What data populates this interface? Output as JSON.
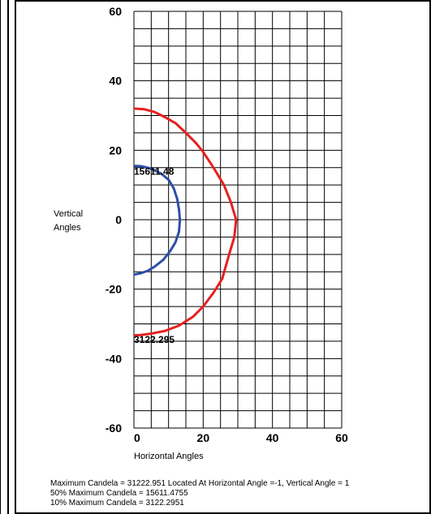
{
  "chart_data": {
    "type": "line",
    "xlabel": "Horizontal Angles",
    "ylabel_lines": [
      "Vertical",
      "Angles"
    ],
    "xlim": [
      0,
      60
    ],
    "ylim": [
      -60,
      60
    ],
    "x_grid_step": 5,
    "y_grid_step": 5,
    "x_ticks": [
      0,
      20,
      40,
      60
    ],
    "y_ticks": [
      60,
      40,
      20,
      0,
      -20,
      -40,
      -60
    ],
    "grid": true,
    "series": [
      {
        "color": "#e62020",
        "contour_label": "3122.295",
        "label_at": [
          0,
          -35.5
        ],
        "points": [
          [
            0,
            32
          ],
          [
            3,
            31.8
          ],
          [
            6,
            31
          ],
          [
            9,
            29.5
          ],
          [
            12,
            27.8
          ],
          [
            15,
            25
          ],
          [
            18,
            22
          ],
          [
            20,
            19.5
          ],
          [
            23,
            15
          ],
          [
            26,
            10
          ],
          [
            28,
            5
          ],
          [
            29.5,
            0
          ],
          [
            29,
            -5
          ],
          [
            27.5,
            -10
          ],
          [
            25.5,
            -17
          ],
          [
            23,
            -21
          ],
          [
            20,
            -25
          ],
          [
            17,
            -28
          ],
          [
            13,
            -30.5
          ],
          [
            9,
            -32
          ],
          [
            5,
            -32.8
          ],
          [
            2,
            -33.2
          ],
          [
            0,
            -33.3
          ]
        ]
      },
      {
        "color": "#2e4fa6",
        "contour_label": "15611.48",
        "label_at": [
          0,
          13
        ],
        "points": [
          [
            0,
            15.5
          ],
          [
            2,
            15.4
          ],
          [
            4,
            15
          ],
          [
            6,
            14.2
          ],
          [
            8,
            13.2
          ],
          [
            10,
            11.5
          ],
          [
            11.5,
            9
          ],
          [
            12.5,
            6
          ],
          [
            13,
            3
          ],
          [
            13.3,
            0
          ],
          [
            13,
            -3.5
          ],
          [
            12,
            -6.5
          ],
          [
            10.5,
            -9
          ],
          [
            8.5,
            -11.5
          ],
          [
            6,
            -13.5
          ],
          [
            4,
            -14.7
          ],
          [
            2,
            -15.4
          ],
          [
            0,
            -15.8
          ]
        ]
      }
    ]
  },
  "stats": {
    "line1": "Maximum Candela = 31222.951   Located At Horizontal Angle =-1, Vertical Angle = 1",
    "line2": "50% Maximum Candela = 15611.4755",
    "line3": "10% Maximum Candela = 3122.2951"
  }
}
